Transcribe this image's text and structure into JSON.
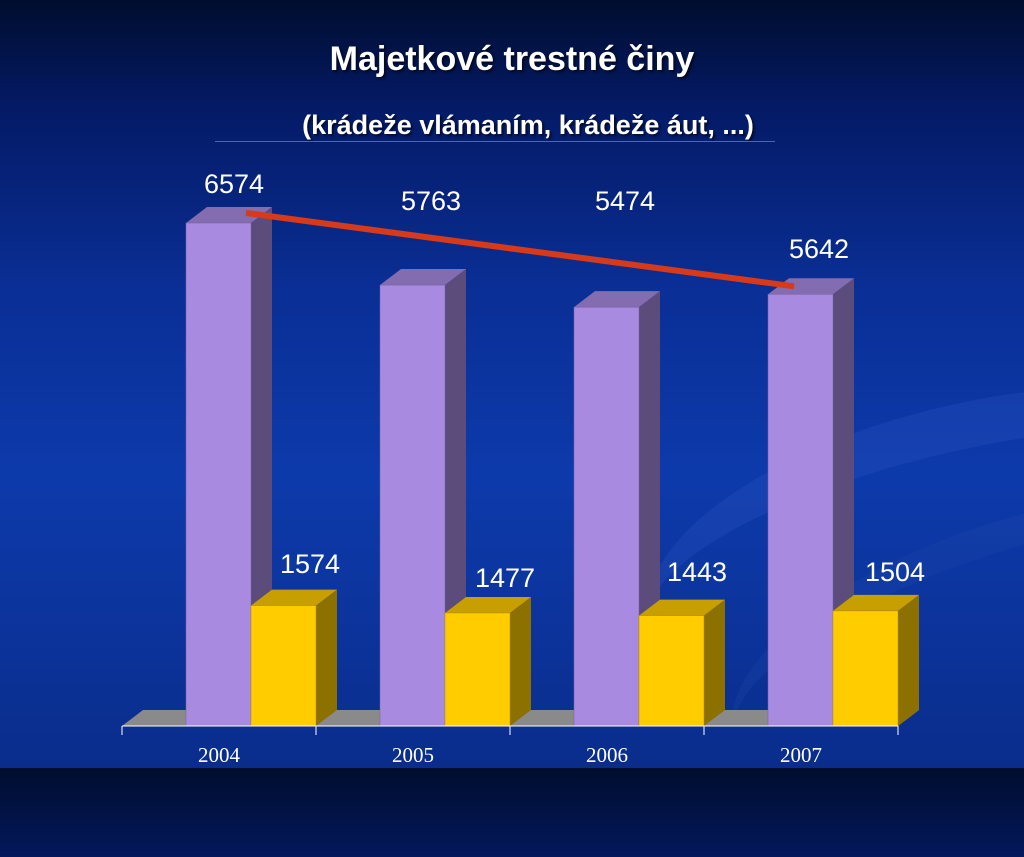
{
  "slide": {
    "title": "Majetkové trestné činy",
    "subtitle": "(krádeže vlámaním, krádeže áut, ...)"
  },
  "chart_data": {
    "type": "bar",
    "categories": [
      "2004",
      "2005",
      "2006",
      "2007"
    ],
    "series": [
      {
        "values": [
          6574,
          5763,
          5474,
          5642
        ],
        "color": "#a88be0"
      },
      {
        "values": [
          1574,
          1477,
          1443,
          1504
        ],
        "color": "#ffcc00"
      }
    ],
    "trendline": {
      "from": 6574,
      "to": 5642,
      "color": "#d63a1a"
    },
    "ylim": [
      0,
      6574
    ],
    "grid": false,
    "legend": "none"
  }
}
